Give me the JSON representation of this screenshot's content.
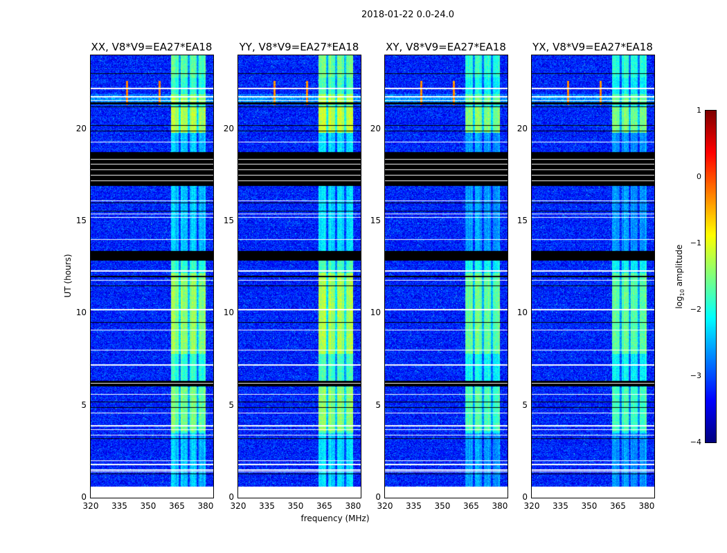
{
  "chart_data": {
    "type": "heatmap",
    "title": "2018-01-22 0.0-24.0",
    "xlabel": "frequency (MHz)",
    "ylabel": "UT (hours)",
    "xlim": [
      320,
      384
    ],
    "ylim": [
      0,
      24
    ],
    "xticks": [
      "320",
      "335",
      "350",
      "365",
      "380"
    ],
    "xtick_values": [
      320,
      335,
      350,
      365,
      380
    ],
    "yticks": [
      "0",
      "5",
      "10",
      "15",
      "20"
    ],
    "ytick_values": [
      0,
      5,
      10,
      15,
      20
    ],
    "panels": [
      {
        "title": "XX, V8*V9=EA27*EA18",
        "gain": 0.0
      },
      {
        "title": "YY, V8*V9=EA27*EA18",
        "gain": 0.15
      },
      {
        "title": "XY, V8*V9=EA27*EA18",
        "gain": -0.2
      },
      {
        "title": "YX, V8*V9=EA27*EA18",
        "gain": -0.25
      }
    ],
    "data_start_hour": 0.6,
    "background_log10": -3.3,
    "band_MHz": [
      362,
      380
    ],
    "band_gaps_MHz": [
      366.5,
      371.2,
      376.0
    ],
    "rfi_lines_MHz": [
      339,
      356
    ],
    "rfi_hours": [
      21.3,
      22.6
    ],
    "flagged_hours": [
      [
        16.9,
        18.75
      ],
      [
        12.85,
        13.4
      ],
      [
        21.35,
        21.45
      ],
      [
        6.05,
        6.35
      ]
    ],
    "white_gap_hours": [
      22.2,
      21.75,
      21.55,
      19.3,
      17.2,
      17.5,
      17.8,
      18.1,
      18.35,
      16.1,
      15.4,
      15.2,
      14.0,
      12.3,
      11.8,
      10.2,
      9.1,
      8.0,
      7.2,
      6.2,
      5.6,
      4.6,
      3.9,
      3.7,
      3.4,
      2.0,
      1.8,
      1.5,
      1.4
    ],
    "black_line_hours": [
      23.0,
      21.2,
      20.2,
      19.9,
      16.0,
      15.55,
      12.0,
      11.5,
      9.5,
      5.2,
      4.9,
      3.2,
      1.3
    ],
    "colorbar": {
      "label": "log10 amplitude",
      "label_main": "log",
      "label_sub": "10",
      "label_rest": " amplitude",
      "range": [
        -4,
        1
      ],
      "ticks": [
        "1",
        "0",
        "−1",
        "−2",
        "−3",
        "−4"
      ],
      "tick_values": [
        1,
        0,
        -1,
        -2,
        -3,
        -4
      ],
      "colormap": "jet"
    }
  }
}
